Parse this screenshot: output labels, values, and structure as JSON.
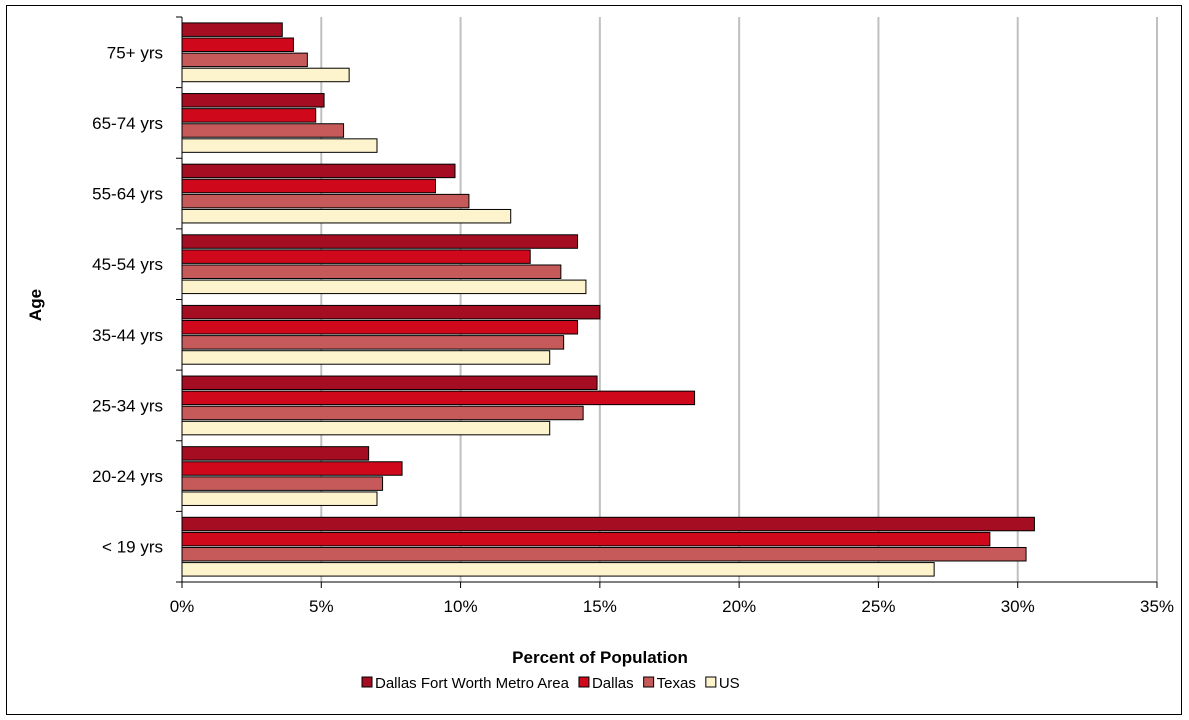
{
  "chart_data": {
    "type": "bar",
    "orientation": "horizontal",
    "categories": [
      "75+ yrs",
      "65-74 yrs",
      "55-64 yrs",
      "45-54 yrs",
      "35-44 yrs",
      "25-34 yrs",
      "20-24 yrs",
      "< 19 yrs"
    ],
    "series": [
      {
        "name": "Dallas Fort Worth Metro Area",
        "color": "#a50d22",
        "values": [
          3.6,
          5.1,
          9.8,
          14.2,
          15.0,
          14.9,
          6.7,
          30.6
        ]
      },
      {
        "name": "Dallas",
        "color": "#d0081c",
        "values": [
          4.0,
          4.8,
          9.1,
          12.5,
          14.2,
          18.4,
          7.9,
          29.0
        ]
      },
      {
        "name": "Texas",
        "color": "#c65a5a",
        "values": [
          4.5,
          5.8,
          10.3,
          13.6,
          13.7,
          14.4,
          7.2,
          30.3
        ]
      },
      {
        "name": "US",
        "color": "#fdf3cd",
        "values": [
          6.0,
          7.0,
          11.8,
          14.5,
          13.2,
          13.2,
          7.0,
          27.0
        ]
      }
    ],
    "xlim": [
      0,
      35
    ],
    "xticks": [
      "0%",
      "5%",
      "10%",
      "15%",
      "20%",
      "25%",
      "30%",
      "35%"
    ],
    "xlabel": "Percent of Population",
    "ylabel": "Age",
    "title": "",
    "grid": "vertical",
    "legend_position": "bottom"
  }
}
